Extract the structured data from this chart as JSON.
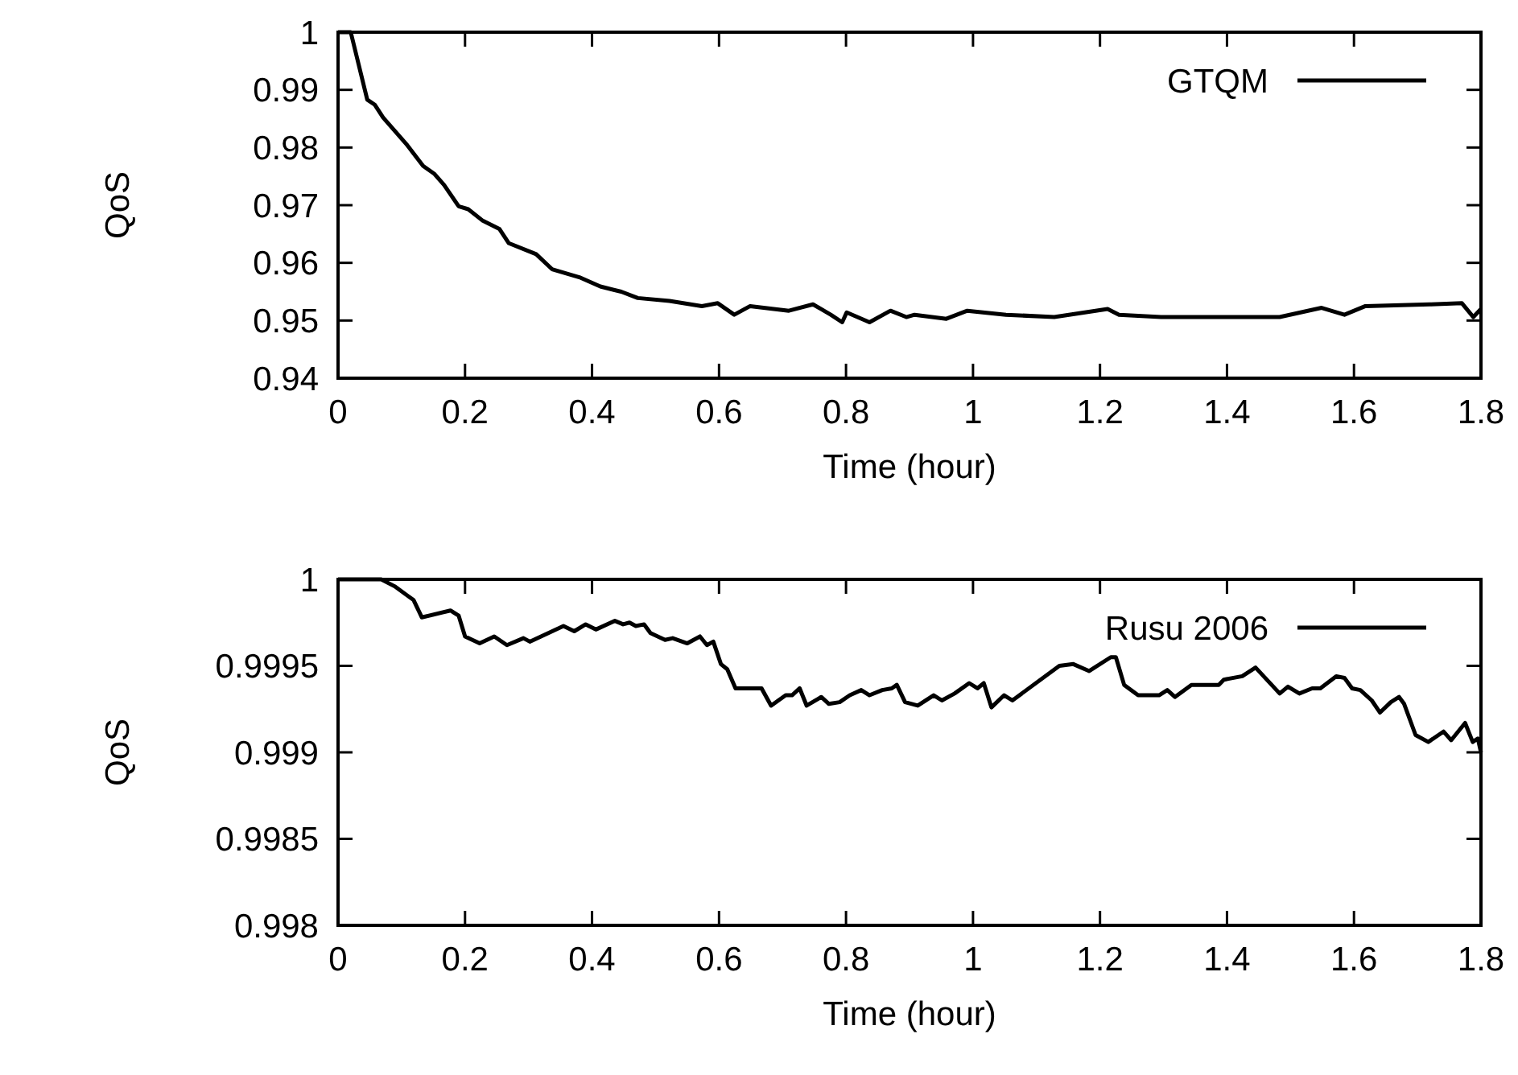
{
  "chart_data": [
    {
      "type": "line",
      "xlabel": "Time (hour)",
      "ylabel": "QoS",
      "xlim": [
        0,
        1.8
      ],
      "ylim": [
        0.94,
        1
      ],
      "xticks": [
        0,
        0.2,
        0.4,
        0.6,
        0.8,
        1,
        1.2,
        1.4,
        1.6,
        1.8
      ],
      "yticks": [
        0.94,
        0.95,
        0.96,
        0.97,
        0.98,
        0.99,
        1
      ],
      "legend": "top right",
      "line_style": "solid",
      "marker": "none",
      "series": [
        {
          "name": "GTQM",
          "color": "#000000",
          "x": [
            0,
            0.02,
            0.046,
            0.058,
            0.071,
            0.109,
            0.134,
            0.152,
            0.167,
            0.19,
            0.205,
            0.228,
            0.254,
            0.269,
            0.312,
            0.337,
            0.38,
            0.413,
            0.446,
            0.472,
            0.522,
            0.573,
            0.598,
            0.624,
            0.649,
            0.71,
            0.748,
            0.776,
            0.794,
            0.801,
            0.837,
            0.87,
            0.895,
            0.908,
            0.958,
            0.991,
            1.052,
            1.128,
            1.212,
            1.23,
            1.296,
            1.382,
            1.483,
            1.549,
            1.585,
            1.618,
            1.719,
            1.77,
            1.788,
            1.8
          ],
          "values": [
            1,
            1,
            0.9883,
            0.9874,
            0.9852,
            0.9804,
            0.9768,
            0.9754,
            0.9735,
            0.9698,
            0.9693,
            0.9673,
            0.9659,
            0.9634,
            0.9615,
            0.9589,
            0.9575,
            0.9559,
            0.955,
            0.9539,
            0.9534,
            0.9525,
            0.953,
            0.951,
            0.9525,
            0.9517,
            0.9528,
            0.951,
            0.9497,
            0.9514,
            0.9497,
            0.9517,
            0.9506,
            0.951,
            0.9503,
            0.9517,
            0.951,
            0.9506,
            0.952,
            0.951,
            0.9506,
            0.9506,
            0.9506,
            0.9522,
            0.951,
            0.9525,
            0.9528,
            0.953,
            0.9506,
            0.952
          ]
        }
      ]
    },
    {
      "type": "line",
      "xlabel": "Time (hour)",
      "ylabel": "QoS",
      "xlim": [
        0,
        1.8
      ],
      "ylim": [
        0.998,
        1
      ],
      "xticks": [
        0,
        0.2,
        0.4,
        0.6,
        0.8,
        1,
        1.2,
        1.4,
        1.6,
        1.8
      ],
      "yticks": [
        0.998,
        0.9985,
        0.999,
        0.9995,
        1
      ],
      "legend": "top right",
      "line_style": "solid",
      "marker": "none",
      "series": [
        {
          "name": "Rusu 2006",
          "color": "#000000",
          "x": [
            0,
            0.068,
            0.089,
            0.119,
            0.132,
            0.177,
            0.19,
            0.2,
            0.223,
            0.246,
            0.266,
            0.292,
            0.302,
            0.355,
            0.372,
            0.39,
            0.406,
            0.436,
            0.449,
            0.459,
            0.469,
            0.482,
            0.492,
            0.515,
            0.527,
            0.55,
            0.57,
            0.581,
            0.591,
            0.603,
            0.613,
            0.626,
            0.667,
            0.682,
            0.705,
            0.715,
            0.727,
            0.738,
            0.761,
            0.773,
            0.79,
            0.806,
            0.824,
            0.837,
            0.857,
            0.872,
            0.88,
            0.893,
            0.913,
            0.938,
            0.951,
            0.971,
            0.994,
            1.007,
            1.017,
            1.029,
            1.049,
            1.062,
            1.136,
            1.158,
            1.183,
            1.217,
            1.225,
            1.238,
            1.26,
            1.293,
            1.306,
            1.318,
            1.344,
            1.387,
            1.395,
            1.424,
            1.445,
            1.483,
            1.496,
            1.514,
            1.534,
            1.547,
            1.572,
            1.585,
            1.597,
            1.61,
            1.628,
            1.641,
            1.658,
            1.671,
            1.679,
            1.697,
            1.717,
            1.741,
            1.753,
            1.775,
            1.787,
            1.795,
            1.8
          ],
          "values": [
            1,
            1,
            0.99996,
            0.99988,
            0.99978,
            0.99982,
            0.99979,
            0.99967,
            0.99963,
            0.99967,
            0.99962,
            0.99966,
            0.99964,
            0.99973,
            0.9997,
            0.99974,
            0.99971,
            0.99976,
            0.99974,
            0.99975,
            0.99973,
            0.99974,
            0.99969,
            0.99965,
            0.99966,
            0.99963,
            0.99967,
            0.99962,
            0.99964,
            0.99951,
            0.99948,
            0.99937,
            0.99937,
            0.99927,
            0.99933,
            0.99933,
            0.99937,
            0.99927,
            0.99932,
            0.99928,
            0.99929,
            0.99933,
            0.99936,
            0.99933,
            0.99936,
            0.99937,
            0.99939,
            0.99929,
            0.99927,
            0.99933,
            0.9993,
            0.99934,
            0.9994,
            0.99937,
            0.9994,
            0.99926,
            0.99933,
            0.9993,
            0.9995,
            0.99951,
            0.99947,
            0.99955,
            0.99955,
            0.99939,
            0.99933,
            0.99933,
            0.99936,
            0.99932,
            0.99939,
            0.99939,
            0.99942,
            0.99944,
            0.99949,
            0.99934,
            0.99938,
            0.99934,
            0.99937,
            0.99937,
            0.99944,
            0.99943,
            0.99937,
            0.99936,
            0.9993,
            0.99923,
            0.99929,
            0.99932,
            0.99928,
            0.9991,
            0.99906,
            0.99912,
            0.99907,
            0.99917,
            0.99906,
            0.99908,
            0.999
          ]
        }
      ]
    }
  ]
}
